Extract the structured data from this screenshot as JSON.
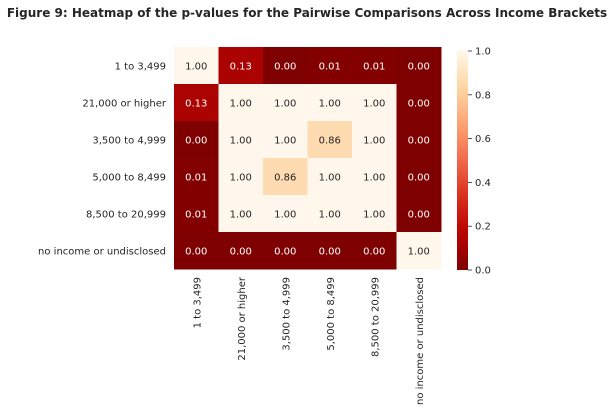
{
  "chart_data": {
    "type": "heatmap",
    "title": "Figure 9: Heatmap of the p-values for the Pairwise Comparisons Across Income Brackets",
    "xlabel": "",
    "ylabel": "",
    "row_labels": [
      "1 to 3,499",
      "21,000 or higher",
      "3,500 to 4,999",
      "5,000 to 8,499",
      "8,500 to 20,999",
      "no income or undisclosed"
    ],
    "col_labels": [
      "1 to 3,499",
      "21,000 or higher",
      "3,500 to 4,999",
      "5,000 to 8,499",
      "8,500 to 20,999",
      "no income or undisclosed"
    ],
    "values": [
      [
        1.0,
        0.13,
        0.0,
        0.01,
        0.01,
        0.0
      ],
      [
        0.13,
        1.0,
        1.0,
        1.0,
        1.0,
        0.0
      ],
      [
        0.0,
        1.0,
        1.0,
        0.86,
        1.0,
        0.0
      ],
      [
        0.01,
        1.0,
        0.86,
        1.0,
        1.0,
        0.0
      ],
      [
        0.01,
        1.0,
        1.0,
        1.0,
        1.0,
        0.0
      ],
      [
        0.0,
        0.0,
        0.0,
        0.0,
        0.0,
        1.0
      ]
    ],
    "value_format": "2 decimals",
    "colormap": "OrRd reversed (dark red at 0, cream at 1)",
    "colorbar": {
      "range": [
        0,
        1
      ],
      "ticks": [
        "0.0",
        "0.2",
        "0.4",
        "0.6",
        "0.8",
        "1.0"
      ]
    },
    "grid": false
  }
}
